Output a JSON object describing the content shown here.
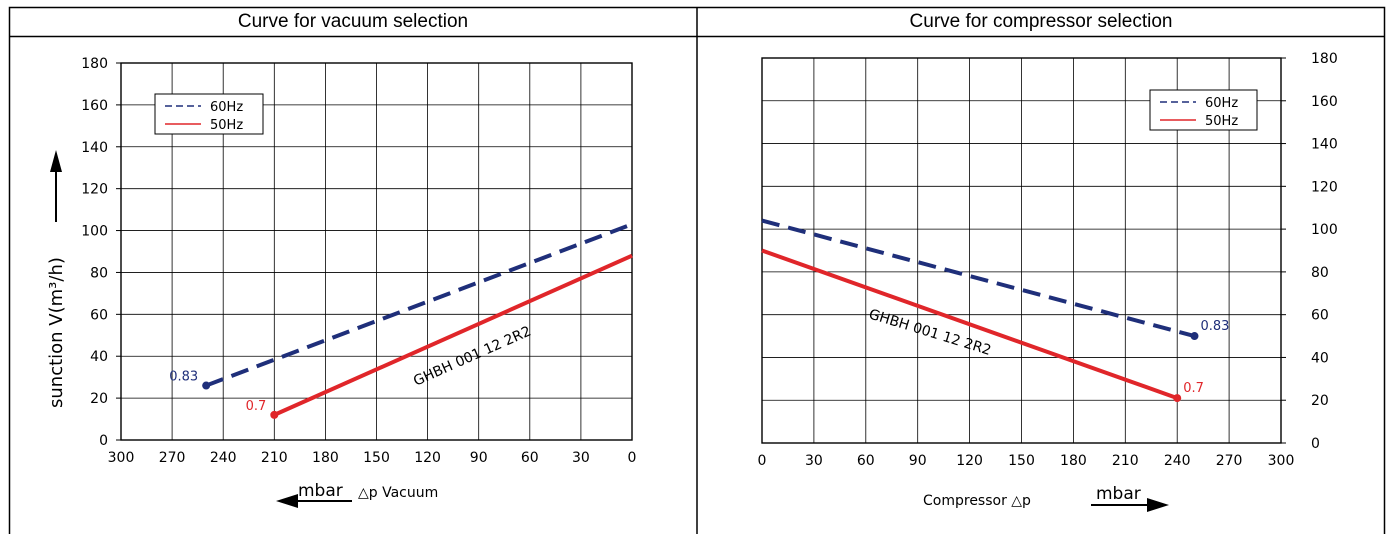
{
  "chart_data": [
    {
      "type": "line",
      "title": "Curve for vacuum selection",
      "ylabel": "suncti​on V(m³/h)",
      "ylabel_display": "sunction V(m³/h)",
      "xlabel_unit": "mbar",
      "xlabel": "△p  Vacuum",
      "x_ticks": [
        300,
        270,
        240,
        210,
        180,
        150,
        120,
        90,
        60,
        30,
        0
      ],
      "y_ticks": [
        0,
        20,
        40,
        60,
        80,
        100,
        120,
        140,
        160,
        180
      ],
      "xlim": [
        300,
        0
      ],
      "ylim": [
        0,
        180
      ],
      "x_reversed": true,
      "legend_position": "top-left",
      "grid": true,
      "model_label": "GHBH 001 12 2R2",
      "series": [
        {
          "name": "60Hz",
          "style": "dashed",
          "color": "#1f2f7a",
          "x": [
            250,
            0
          ],
          "y": [
            26,
            103
          ],
          "end_label": "0.83"
        },
        {
          "name": "50Hz",
          "style": "solid",
          "color": "#e0262a",
          "x": [
            210,
            0
          ],
          "y": [
            12,
            88
          ],
          "end_label": "0.7"
        }
      ]
    },
    {
      "type": "line",
      "title": "Curve for compressor selection",
      "xlabel_unit": "mbar",
      "xlabel": "Compressor  △p",
      "x_ticks": [
        0,
        30,
        60,
        90,
        120,
        150,
        180,
        210,
        240,
        270,
        300
      ],
      "y_ticks": [
        0,
        20,
        40,
        60,
        80,
        100,
        120,
        140,
        160,
        180
      ],
      "xlim": [
        0,
        300
      ],
      "ylim": [
        0,
        180
      ],
      "y_axis_side": "right",
      "legend_position": "top-right",
      "grid": true,
      "model_label": "GHBH 001 12 2R2",
      "series": [
        {
          "name": "60Hz",
          "style": "dashed",
          "color": "#1f2f7a",
          "x": [
            0,
            250
          ],
          "y": [
            104,
            50
          ],
          "end_label": "0.83"
        },
        {
          "name": "50Hz",
          "style": "solid",
          "color": "#e0262a",
          "x": [
            0,
            240
          ],
          "y": [
            90,
            21
          ],
          "end_label": "0.7"
        }
      ]
    }
  ]
}
